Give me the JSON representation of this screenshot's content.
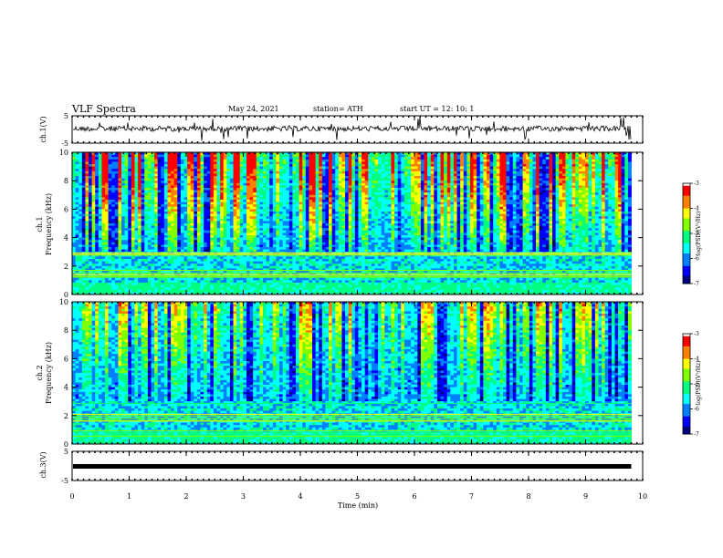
{
  "header": {
    "title": "VLF Spectra",
    "date": "May 24, 2021",
    "station": "station= ATH",
    "start": "start  UT  =    12: 10: 1"
  },
  "chart_data": [
    {
      "type": "line",
      "panel": "ch1-waveform",
      "ylabel": "ch.1(V)",
      "ylim": [
        -5,
        5
      ],
      "y_ticks": [
        "5",
        "-5"
      ],
      "x_range": [
        0,
        10
      ],
      "x_data_end": 9.8,
      "baseline_v": 0.3,
      "color": "#000000"
    },
    {
      "type": "heatmap",
      "panel": "ch1-spectrogram",
      "ylabel_line1": "ch.1",
      "ylabel_line2": "Frequency (kHz)",
      "ylim": [
        0,
        10
      ],
      "y_ticks": [
        "0",
        "2",
        "4",
        "6",
        "8",
        "10"
      ],
      "x_range": [
        0,
        10
      ],
      "x_data_end": 9.8,
      "colorbar": {
        "range": [
          -7,
          -3
        ],
        "ticks": [
          "-3",
          "-4",
          "-5",
          "-6",
          "-7"
        ],
        "label": "log(PSD)(V²/Hz)"
      }
    },
    {
      "type": "heatmap",
      "panel": "ch2-spectrogram",
      "ylabel_line1": "ch.2",
      "ylabel_line2": "Frequency (kHz)",
      "ylim": [
        0,
        10
      ],
      "y_ticks": [
        "0",
        "2",
        "4",
        "6",
        "8",
        "10"
      ],
      "x_range": [
        0,
        10
      ],
      "x_data_end": 9.8,
      "colorbar": {
        "range": [
          -7,
          -3
        ],
        "ticks": [
          "-3",
          "-4",
          "-5",
          "-6",
          "-7"
        ],
        "label": "log(PSD)(V²/Hz)"
      }
    },
    {
      "type": "line",
      "panel": "ch3-waveform",
      "ylabel": "ch.3(V)",
      "ylim": [
        -5,
        5
      ],
      "y_ticks": [
        "5",
        "-5"
      ],
      "x_range": [
        0,
        10
      ],
      "x_data_end": 9.8,
      "baseline_v": 0,
      "color": "#000000"
    }
  ],
  "x_axis": {
    "label": "Time  (min)",
    "ticks": [
      "0",
      "1",
      "2",
      "3",
      "4",
      "5",
      "6",
      "7",
      "8",
      "9",
      "10"
    ]
  },
  "colormap": [
    "#000080",
    "#0000ff",
    "#0080ff",
    "#00ffff",
    "#00ff80",
    "#80ff00",
    "#ffff00",
    "#ff8000",
    "#ff0000",
    "#ffffff"
  ]
}
